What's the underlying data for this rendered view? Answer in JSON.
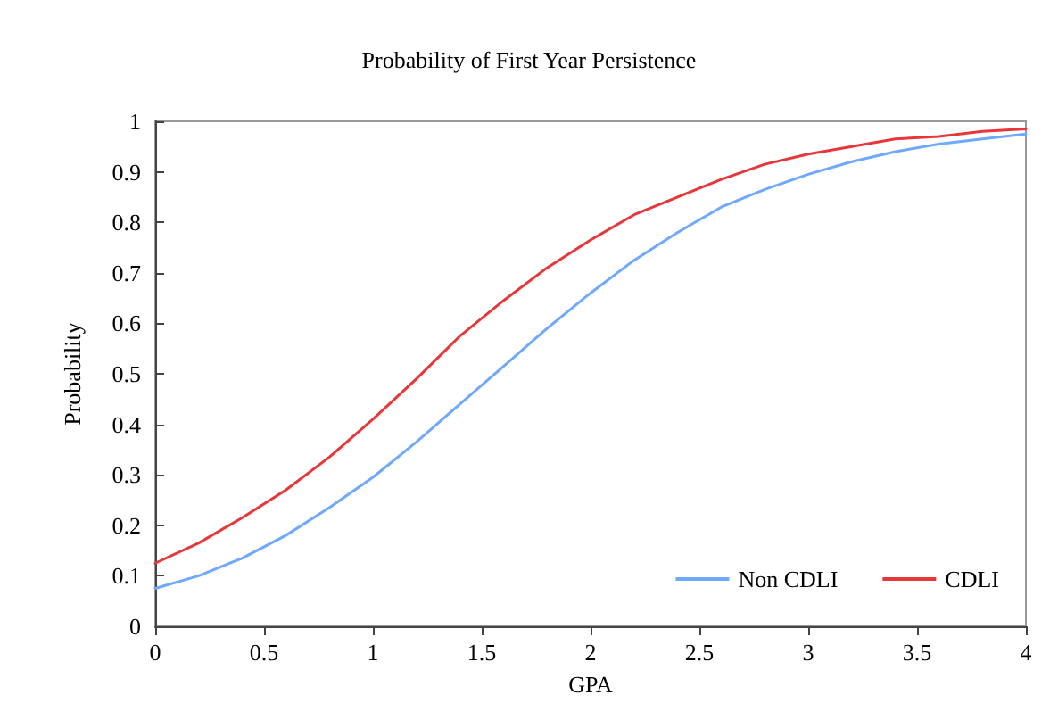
{
  "chart_data": {
    "type": "line",
    "title": "Probability of First Year Persistence",
    "xlabel": "GPA",
    "ylabel": "Probability",
    "x": [
      0,
      0.2,
      0.4,
      0.6,
      0.8,
      1,
      1.2,
      1.4,
      1.6,
      1.8,
      2,
      2.2,
      2.4,
      2.6,
      2.8,
      3,
      3.2,
      3.4,
      3.6,
      3.8,
      4
    ],
    "series": [
      {
        "name": "Non CDLI",
        "color": "#6fa8ff",
        "values": [
          0.075,
          0.1,
          0.135,
          0.18,
          0.235,
          0.295,
          0.365,
          0.44,
          0.515,
          0.59,
          0.66,
          0.725,
          0.78,
          0.83,
          0.865,
          0.895,
          0.92,
          0.94,
          0.955,
          0.965,
          0.975
        ]
      },
      {
        "name": "CDLI",
        "color": "#e8373b",
        "values": [
          0.125,
          0.165,
          0.215,
          0.27,
          0.335,
          0.41,
          0.49,
          0.575,
          0.645,
          0.71,
          0.765,
          0.815,
          0.85,
          0.885,
          0.915,
          0.935,
          0.95,
          0.965,
          0.97,
          0.98,
          0.985
        ]
      }
    ],
    "xlim": [
      0,
      4
    ],
    "xticks": [
      0,
      0.5,
      1,
      1.5,
      2,
      2.5,
      3,
      3.5,
      4
    ],
    "ylim": [
      0,
      1
    ],
    "yticks": [
      0,
      0.1,
      0.2,
      0.3,
      0.4,
      0.5,
      0.6,
      0.7,
      0.8,
      0.9,
      1
    ],
    "grid": false,
    "legend": "bottom right",
    "marker": "none",
    "line_style": "solid"
  }
}
